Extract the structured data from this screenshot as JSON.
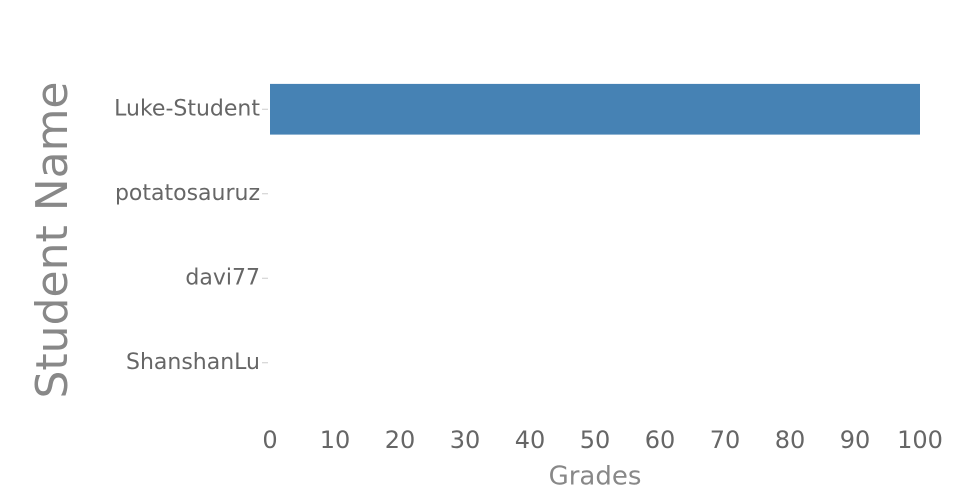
{
  "chart_data": {
    "type": "bar",
    "orientation": "horizontal",
    "x_label": "Grades",
    "y_label": "Student Name",
    "categories": [
      "Luke-Student",
      "potatosauruz",
      "davi77",
      "ShanshanLu"
    ],
    "values": [
      100,
      0,
      0,
      0
    ],
    "color": "#4682b4",
    "xlim": [
      0,
      100
    ],
    "xticks": [
      0,
      10,
      20,
      30,
      40,
      50,
      60,
      70,
      80,
      90,
      100
    ],
    "grid": false
  }
}
